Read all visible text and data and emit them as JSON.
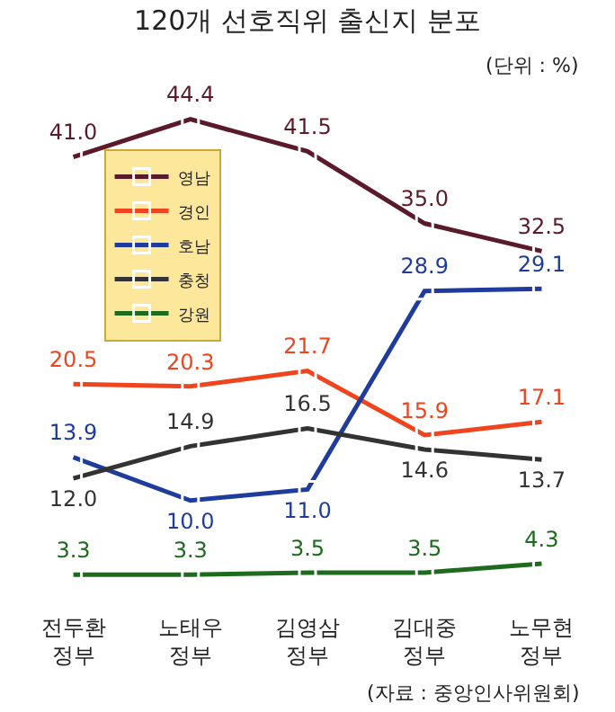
{
  "chart_data": {
    "type": "line",
    "title": "120개 선호직위 출신지 분포",
    "subtitle": "(단위 : %)",
    "categories": [
      "전두환\n정부",
      "노태우\n정부",
      "김영삼\n정부",
      "김대중\n정부",
      "노무현\n정부"
    ],
    "series": [
      {
        "name": "영남",
        "color": "#5a1a2a",
        "values": [
          41.0,
          44.4,
          41.5,
          35.0,
          32.5
        ],
        "value_labels": [
          "41.0",
          "44.4",
          "41.5",
          "35.0",
          "32.5"
        ]
      },
      {
        "name": "경인",
        "color": "#f0441e",
        "values": [
          20.5,
          20.3,
          21.7,
          15.9,
          17.1
        ],
        "value_labels": [
          "20.5",
          "20.3",
          "21.7",
          "15.9",
          "17.1"
        ]
      },
      {
        "name": "호남",
        "color": "#1f3c9c",
        "values": [
          13.9,
          10.0,
          11.0,
          28.9,
          29.1
        ],
        "value_labels": [
          "13.9",
          "10.0",
          "11.0",
          "28.9",
          "29.1"
        ]
      },
      {
        "name": "충청",
        "color": "#333333",
        "values": [
          12.0,
          14.9,
          16.5,
          14.6,
          13.7
        ],
        "value_labels": [
          "12.0",
          "14.9",
          "16.5",
          "14.6",
          "13.7"
        ]
      },
      {
        "name": "강원",
        "color": "#1e6b1e",
        "values": [
          3.3,
          3.3,
          3.5,
          3.5,
          4.3
        ],
        "value_labels": [
          "3.3",
          "3.3",
          "3.5",
          "3.5",
          "4.3"
        ]
      }
    ],
    "marker": "square",
    "legend": "top left",
    "annotations": [
      "(자료 : 중앙인사위원회)"
    ]
  }
}
